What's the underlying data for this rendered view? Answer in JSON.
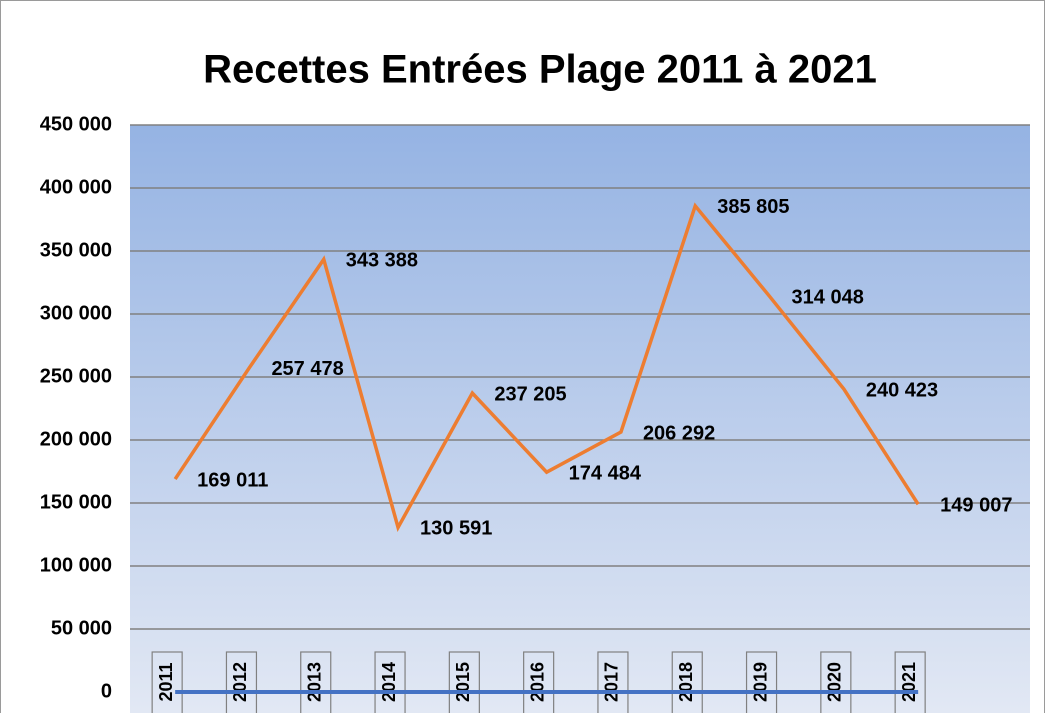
{
  "chart_data": {
    "type": "line",
    "title": "Recettes Entrées Plage 2011 à 2021",
    "categories": [
      "2011",
      "2012",
      "2013",
      "2014",
      "2015",
      "2016",
      "2017",
      "2018",
      "2019",
      "2020",
      "2021"
    ],
    "series": [
      {
        "color": "#ed7d31",
        "values": [
          169011,
          257478,
          343388,
          130591,
          237205,
          174484,
          206292,
          385805,
          314048,
          240423,
          149007
        ],
        "value_labels": [
          "169 011",
          "257 478",
          "343 388",
          "130 591",
          "237 205",
          "174 484",
          "206 292",
          "385 805",
          "314 048",
          "240 423",
          "149 007"
        ]
      }
    ],
    "ylim": [
      0,
      450000
    ],
    "yticks": [
      0,
      {
        "value": 50000,
        "label": "50 000"
      },
      {
        "value": 100000,
        "label": "100 000"
      },
      {
        "value": 150000,
        "label": "150 000"
      },
      {
        "value": 200000,
        "label": "200 000"
      },
      {
        "value": 250000,
        "label": "250 000"
      },
      {
        "value": 300000,
        "label": "300 000"
      },
      {
        "value": 350000,
        "label": "350 000"
      },
      {
        "value": 400000,
        "label": "400 000"
      },
      {
        "value": 450000,
        "label": "450 000"
      }
    ],
    "grid": true
  }
}
